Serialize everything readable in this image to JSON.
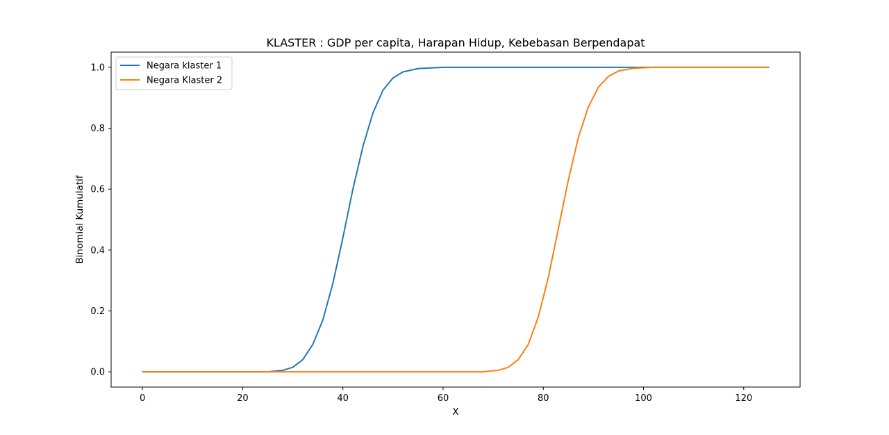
{
  "chart_data": {
    "type": "line",
    "title": "KLASTER : GDP per capita, Harapan Hidup, Kebebasan Berpendapat",
    "xlabel": "X",
    "ylabel": "Binomial Kumulatif",
    "xlim": [
      -6.25,
      131.25
    ],
    "ylim": [
      -0.05,
      1.05
    ],
    "xticks": [
      0,
      20,
      40,
      60,
      80,
      100,
      120
    ],
    "yticks": [
      0.0,
      0.2,
      0.4,
      0.6,
      0.8,
      1.0
    ],
    "xtick_labels": [
      "0",
      "20",
      "40",
      "60",
      "80",
      "100",
      "120"
    ],
    "ytick_labels": [
      "0.0",
      "0.2",
      "0.4",
      "0.6",
      "0.8",
      "1.0"
    ],
    "grid": false,
    "legend_position": "upper-left",
    "series": [
      {
        "name": "Negara klaster 1",
        "color": "#1f77b4",
        "x": [
          0,
          25,
          28,
          30,
          32,
          34,
          36,
          38,
          40,
          42,
          44,
          46,
          48,
          50,
          52,
          55,
          60,
          125
        ],
        "y": [
          0.0,
          0.0,
          0.005,
          0.015,
          0.04,
          0.09,
          0.17,
          0.29,
          0.44,
          0.6,
          0.74,
          0.85,
          0.925,
          0.965,
          0.985,
          0.996,
          1.0,
          1.0
        ]
      },
      {
        "name": "Negara Klaster 2",
        "color": "#ff7f0e",
        "x": [
          0,
          68,
          71,
          73,
          75,
          77,
          79,
          81,
          83,
          85,
          87,
          89,
          91,
          93,
          95,
          98,
          102,
          125
        ],
        "y": [
          0.0,
          0.0,
          0.005,
          0.015,
          0.04,
          0.09,
          0.18,
          0.31,
          0.47,
          0.63,
          0.77,
          0.87,
          0.935,
          0.97,
          0.988,
          0.997,
          1.0,
          1.0
        ]
      }
    ]
  }
}
